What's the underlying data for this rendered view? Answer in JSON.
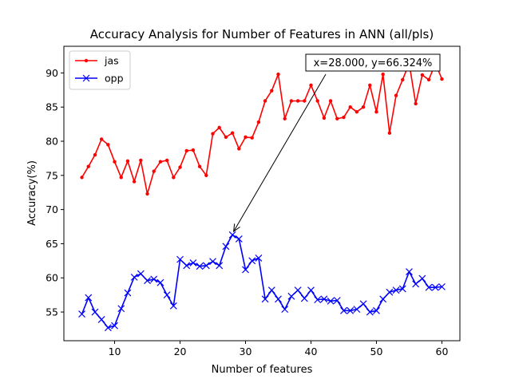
{
  "chart_data": {
    "type": "line",
    "title": "Accuracy Analysis for Number of Features in ANN (all/pls)",
    "xlabel": "Number of features",
    "ylabel": "Accuracy(%)",
    "xlim": [
      2.25,
      62.75
    ],
    "ylim": [
      50.8,
      93.9
    ],
    "xticks": [
      10,
      20,
      30,
      40,
      50,
      60
    ],
    "yticks": [
      55,
      60,
      65,
      70,
      75,
      80,
      85,
      90
    ],
    "legend_position": "top-left",
    "grid": false,
    "x": [
      5,
      6,
      7,
      8,
      9,
      10,
      11,
      12,
      13,
      14,
      15,
      16,
      17,
      18,
      19,
      20,
      21,
      22,
      23,
      24,
      25,
      26,
      27,
      28,
      29,
      30,
      31,
      32,
      33,
      34,
      35,
      36,
      37,
      38,
      39,
      40,
      41,
      42,
      43,
      44,
      45,
      46,
      47,
      48,
      49,
      50,
      51,
      52,
      53,
      54,
      55,
      56,
      57,
      58,
      59,
      60
    ],
    "series": [
      {
        "name": "jas",
        "color": "#ff0000",
        "marker": "dot",
        "values": [
          74.7,
          76.3,
          78.0,
          80.3,
          79.5,
          77.0,
          74.7,
          77.1,
          74.1,
          77.2,
          72.3,
          75.6,
          77.0,
          77.2,
          74.7,
          76.2,
          78.6,
          78.7,
          76.3,
          75.0,
          81.1,
          82.0,
          80.6,
          81.2,
          78.9,
          80.6,
          80.5,
          82.8,
          85.9,
          87.4,
          89.8,
          83.3,
          85.9,
          85.9,
          85.9,
          88.2,
          85.9,
          83.4,
          85.9,
          83.3,
          83.5,
          85.0,
          84.3,
          85.0,
          88.2,
          84.3,
          89.8,
          81.2,
          86.7,
          89.0,
          91.4,
          85.5,
          89.7,
          89.0,
          91.4,
          89.1
        ]
      },
      {
        "name": "opp",
        "color": "#0000ff",
        "marker": "x",
        "values": [
          54.7,
          57.1,
          55.0,
          53.9,
          52.7,
          53.0,
          55.5,
          57.8,
          60.1,
          60.6,
          59.6,
          59.8,
          59.3,
          57.5,
          55.9,
          62.7,
          61.8,
          62.2,
          61.7,
          61.8,
          62.4,
          61.8,
          64.6,
          66.3,
          65.7,
          61.2,
          62.5,
          62.9,
          56.9,
          58.2,
          56.9,
          55.4,
          57.3,
          58.2,
          57.0,
          58.2,
          56.8,
          56.9,
          56.6,
          56.7,
          55.2,
          55.2,
          55.4,
          56.2,
          55.0,
          55.2,
          56.9,
          57.9,
          58.2,
          58.4,
          60.9,
          59.1,
          59.9,
          58.6,
          58.6,
          58.7
        ]
      }
    ],
    "annotation": {
      "text": "x=28.000, y=66.324%",
      "x": 28.0,
      "y": 66.324
    }
  }
}
